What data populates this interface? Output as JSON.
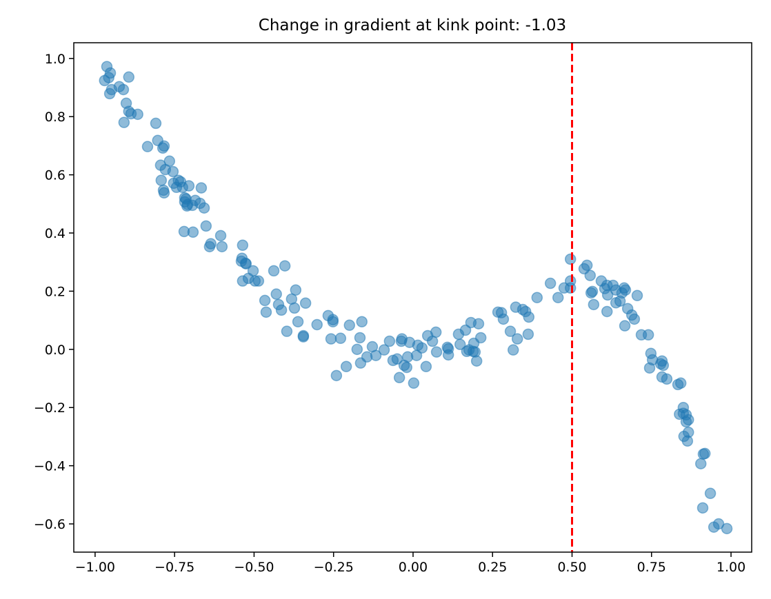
{
  "chart_data": {
    "type": "scatter",
    "title": "Change in gradient at kink point: -1.03",
    "xlabel": "",
    "ylabel": "",
    "xlim": [
      -1.067,
      1.065
    ],
    "ylim": [
      -0.697,
      1.054
    ],
    "grid": false,
    "x_ticks": [
      -1.0,
      -0.75,
      -0.5,
      -0.25,
      0.0,
      0.25,
      0.5,
      0.75,
      1.0
    ],
    "x_tick_labels": [
      "−1.00",
      "−0.75",
      "−0.50",
      "−0.25",
      "0.00",
      "0.25",
      "0.50",
      "0.75",
      "1.00"
    ],
    "y_ticks": [
      -0.6,
      -0.4,
      -0.2,
      0.0,
      0.2,
      0.4,
      0.6,
      0.8,
      1.0
    ],
    "y_tick_labels": [
      "−0.6",
      "−0.4",
      "−0.2",
      "0.0",
      "0.2",
      "0.4",
      "0.6",
      "0.8",
      "1.0"
    ],
    "marker_color": "#1f77b4",
    "marker_alpha": 0.5,
    "kink_line": {
      "x": 0.5,
      "color": "#ff0000",
      "style": "dashed"
    },
    "points": [
      [
        -0.97,
        0.924
      ],
      [
        -0.963,
        0.972
      ],
      [
        -0.957,
        0.934
      ],
      [
        -0.952,
        0.95
      ],
      [
        -0.954,
        0.879
      ],
      [
        -0.948,
        0.893
      ],
      [
        -0.924,
        0.903
      ],
      [
        -0.911,
        0.893
      ],
      [
        -0.894,
        0.936
      ],
      [
        -0.909,
        0.78
      ],
      [
        -0.902,
        0.846
      ],
      [
        -0.894,
        0.818
      ],
      [
        -0.887,
        0.81
      ],
      [
        -0.866,
        0.808
      ],
      [
        -0.835,
        0.697
      ],
      [
        -0.809,
        0.777
      ],
      [
        -0.803,
        0.718
      ],
      [
        -0.787,
        0.692
      ],
      [
        -0.783,
        0.699
      ],
      [
        -0.794,
        0.633
      ],
      [
        -0.792,
        0.581
      ],
      [
        -0.785,
        0.547
      ],
      [
        -0.783,
        0.538
      ],
      [
        -0.779,
        0.618
      ],
      [
        -0.766,
        0.647
      ],
      [
        -0.755,
        0.611
      ],
      [
        -0.753,
        0.571
      ],
      [
        -0.744,
        0.557
      ],
      [
        -0.738,
        0.581
      ],
      [
        -0.731,
        0.576
      ],
      [
        -0.725,
        0.557
      ],
      [
        -0.718,
        0.521
      ],
      [
        -0.718,
        0.507
      ],
      [
        -0.714,
        0.517
      ],
      [
        -0.711,
        0.493
      ],
      [
        -0.709,
        0.498
      ],
      [
        -0.705,
        0.562
      ],
      [
        -0.694,
        0.495
      ],
      [
        -0.685,
        0.512
      ],
      [
        -0.67,
        0.502
      ],
      [
        -0.666,
        0.555
      ],
      [
        -0.657,
        0.486
      ],
      [
        -0.72,
        0.405
      ],
      [
        -0.692,
        0.403
      ],
      [
        -0.651,
        0.424
      ],
      [
        -0.64,
        0.353
      ],
      [
        -0.636,
        0.363
      ],
      [
        -0.605,
        0.391
      ],
      [
        -0.601,
        0.353
      ],
      [
        -0.536,
        0.358
      ],
      [
        -0.538,
        0.313
      ],
      [
        -0.54,
        0.303
      ],
      [
        -0.527,
        0.296
      ],
      [
        -0.525,
        0.294
      ],
      [
        -0.536,
        0.235
      ],
      [
        -0.518,
        0.244
      ],
      [
        -0.503,
        0.27
      ],
      [
        -0.497,
        0.235
      ],
      [
        -0.486,
        0.235
      ],
      [
        -0.466,
        0.168
      ],
      [
        -0.462,
        0.128
      ],
      [
        -0.438,
        0.27
      ],
      [
        -0.43,
        0.19
      ],
      [
        -0.423,
        0.154
      ],
      [
        -0.414,
        0.135
      ],
      [
        -0.403,
        0.287
      ],
      [
        -0.397,
        0.062
      ],
      [
        -0.382,
        0.173
      ],
      [
        -0.373,
        0.142
      ],
      [
        -0.369,
        0.204
      ],
      [
        -0.362,
        0.095
      ],
      [
        -0.345,
        0.047
      ],
      [
        -0.345,
        0.043
      ],
      [
        -0.338,
        0.159
      ],
      [
        -0.302,
        0.085
      ],
      [
        -0.267,
        0.116
      ],
      [
        -0.258,
        0.036
      ],
      [
        -0.252,
        0.102
      ],
      [
        -0.252,
        0.095
      ],
      [
        -0.241,
        -0.09
      ],
      [
        -0.228,
        0.038
      ],
      [
        -0.21,
        -0.059
      ],
      [
        -0.2,
        0.083
      ],
      [
        -0.176,
        0.0
      ],
      [
        -0.167,
        0.04
      ],
      [
        -0.165,
        -0.047
      ],
      [
        -0.161,
        0.095
      ],
      [
        -0.145,
        -0.026
      ],
      [
        -0.128,
        0.009
      ],
      [
        -0.117,
        -0.021
      ],
      [
        -0.091,
        -0.002
      ],
      [
        -0.074,
        0.028
      ],
      [
        -0.063,
        -0.038
      ],
      [
        -0.05,
        -0.033
      ],
      [
        -0.043,
        -0.097
      ],
      [
        -0.037,
        0.028
      ],
      [
        -0.035,
        0.036
      ],
      [
        -0.028,
        -0.055
      ],
      [
        -0.02,
        -0.062
      ],
      [
        -0.017,
        -0.026
      ],
      [
        -0.011,
        0.024
      ],
      [
        0.002,
        -0.116
      ],
      [
        0.011,
        -0.021
      ],
      [
        0.015,
        0.014
      ],
      [
        0.028,
        0.005
      ],
      [
        0.041,
        -0.059
      ],
      [
        0.046,
        0.047
      ],
      [
        0.061,
        0.028
      ],
      [
        0.072,
        0.059
      ],
      [
        0.074,
        -0.009
      ],
      [
        0.108,
        0.007
      ],
      [
        0.111,
        0.002
      ],
      [
        0.111,
        -0.019
      ],
      [
        0.143,
        0.052
      ],
      [
        0.148,
        0.017
      ],
      [
        0.165,
        0.066
      ],
      [
        0.169,
        -0.007
      ],
      [
        0.176,
        -0.002
      ],
      [
        0.182,
        0.092
      ],
      [
        0.189,
        -0.007
      ],
      [
        0.191,
        0.021
      ],
      [
        0.195,
        -0.009
      ],
      [
        0.2,
        -0.04
      ],
      [
        0.206,
        0.088
      ],
      [
        0.213,
        0.04
      ],
      [
        0.267,
        0.128
      ],
      [
        0.278,
        0.126
      ],
      [
        0.284,
        0.104
      ],
      [
        0.306,
        0.062
      ],
      [
        0.315,
        -0.002
      ],
      [
        0.323,
        0.145
      ],
      [
        0.328,
        0.036
      ],
      [
        0.345,
        0.137
      ],
      [
        0.354,
        0.13
      ],
      [
        0.364,
        0.111
      ],
      [
        0.362,
        0.052
      ],
      [
        0.39,
        0.178
      ],
      [
        0.432,
        0.227
      ],
      [
        0.456,
        0.178
      ],
      [
        0.475,
        0.211
      ],
      [
        0.495,
        0.31
      ],
      [
        0.495,
        0.235
      ],
      [
        0.495,
        0.211
      ],
      [
        0.538,
        0.277
      ],
      [
        0.547,
        0.289
      ],
      [
        0.557,
        0.254
      ],
      [
        0.56,
        0.194
      ],
      [
        0.564,
        0.199
      ],
      [
        0.568,
        0.154
      ],
      [
        0.592,
        0.235
      ],
      [
        0.603,
        0.209
      ],
      [
        0.61,
        0.22
      ],
      [
        0.612,
        0.187
      ],
      [
        0.629,
        0.22
      ],
      [
        0.638,
        0.204
      ],
      [
        0.638,
        0.16
      ],
      [
        0.61,
        0.13
      ],
      [
        0.651,
        0.166
      ],
      [
        0.657,
        0.194
      ],
      [
        0.664,
        0.211
      ],
      [
        0.668,
        0.204
      ],
      [
        0.666,
        0.081
      ],
      [
        0.675,
        0.14
      ],
      [
        0.688,
        0.118
      ],
      [
        0.696,
        0.104
      ],
      [
        0.705,
        0.185
      ],
      [
        0.718,
        0.05
      ],
      [
        0.74,
        0.05
      ],
      [
        0.744,
        -0.064
      ],
      [
        0.748,
        -0.014
      ],
      [
        0.753,
        -0.036
      ],
      [
        0.779,
        -0.05
      ],
      [
        0.783,
        -0.095
      ],
      [
        0.783,
        -0.04
      ],
      [
        0.787,
        -0.055
      ],
      [
        0.798,
        -0.102
      ],
      [
        0.833,
        -0.121
      ],
      [
        0.842,
        -0.116
      ],
      [
        0.85,
        -0.2
      ],
      [
        0.838,
        -0.223
      ],
      [
        0.85,
        -0.22
      ],
      [
        0.859,
        -0.225
      ],
      [
        0.866,
        -0.285
      ],
      [
        0.859,
        -0.249
      ],
      [
        0.866,
        -0.242
      ],
      [
        0.852,
        -0.299
      ],
      [
        0.863,
        -0.315
      ],
      [
        0.905,
        -0.393
      ],
      [
        0.913,
        -0.36
      ],
      [
        0.918,
        -0.358
      ],
      [
        0.911,
        -0.545
      ],
      [
        0.935,
        -0.495
      ],
      [
        0.946,
        -0.611
      ],
      [
        0.961,
        -0.6
      ],
      [
        0.987,
        -0.616
      ]
    ]
  }
}
